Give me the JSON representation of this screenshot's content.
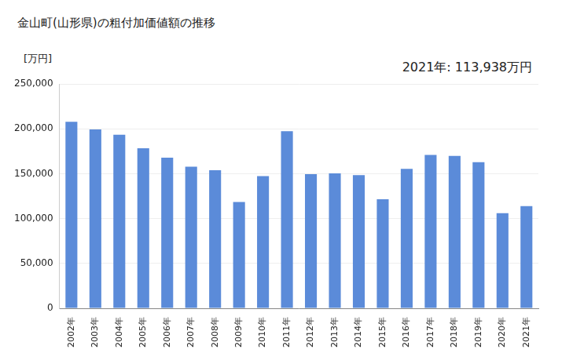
{
  "chart_data": {
    "type": "bar",
    "title": "金山町(山形県)の粗付加価値額の推移",
    "y_label": "[万円]",
    "annotation": "2021年: 113,938万円",
    "categories": [
      "2002年",
      "2003年",
      "2004年",
      "2005年",
      "2006年",
      "2007年",
      "2008年",
      "2009年",
      "2010年",
      "2011年",
      "2012年",
      "2013年",
      "2014年",
      "2015年",
      "2016年",
      "2017年",
      "2018年",
      "2019年",
      "2020年",
      "2021年"
    ],
    "values": [
      208000,
      199500,
      193500,
      178500,
      168000,
      158000,
      154000,
      118500,
      147500,
      197500,
      149500,
      150500,
      148500,
      121500,
      155500,
      171000,
      170000,
      163000,
      106000,
      113938
    ],
    "color": "#5b8bd9",
    "ylim": [
      0,
      250000
    ],
    "yticks": [
      0,
      {
        "value": 50000,
        "label": "50,000"
      },
      {
        "value": 100000,
        "label": "100,000"
      },
      {
        "value": 150000,
        "label": "150,000"
      },
      {
        "value": 200000,
        "label": "200,000"
      },
      {
        "value": 250000,
        "label": "250,000"
      }
    ],
    "grid": true,
    "legend": false
  }
}
